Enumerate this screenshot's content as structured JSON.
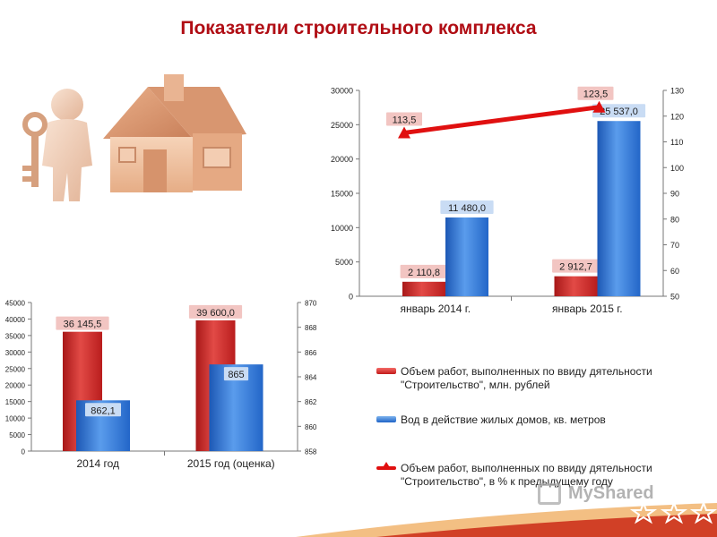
{
  "slide": {
    "title": "Показатели строительного комплекса"
  },
  "icons": {
    "illustration": "house-with-key-illustration",
    "footer": "star-icon"
  },
  "colors": {
    "title": "#b00d14",
    "bar_red": "#d42b2b",
    "bar_blue": "#2f78d6",
    "line_red": "#e01010"
  },
  "legend": {
    "items": [
      {
        "label": "Объем работ, выполненных по ввиду дятельности \"Строительство\", млн. рублей",
        "swatch": "red-bar"
      },
      {
        "label": "Вод в действие жилых домов, кв. метров",
        "swatch": "blue-bar"
      },
      {
        "label": "Объем работ, выполненных по ввиду дятельности \"Строительство\", в % к предыдущему году",
        "swatch": "red-line"
      }
    ]
  },
  "watermark": {
    "text": "MyShared"
  },
  "chart_data": [
    {
      "type": "bar",
      "categories": [
        "январь 2014 г.",
        "январь 2015 г."
      ],
      "series": [
        {
          "name": "Объем работ, выполненных по ввиду дятельности \"Строительство\", млн. рублей",
          "values": [
            2110.8,
            2912.7
          ],
          "labels": [
            "2 110,8",
            "2 912,7"
          ],
          "axis": "left",
          "color": "#d42b2b"
        },
        {
          "name": "Вод в действие жилых домов, кв. метров",
          "values": [
            11480.0,
            25537.0
          ],
          "labels": [
            "11 480,0",
            "25 537,0"
          ],
          "axis": "left",
          "color": "#2f78d6"
        },
        {
          "name": "Объем работ, выполненных по ввиду дятельности \"Строительство\", в % к предыдущему году",
          "type": "line",
          "values": [
            113.5,
            123.5
          ],
          "labels": [
            "113,5",
            "123,5"
          ],
          "axis": "right",
          "color": "#e01010"
        }
      ],
      "ylim": [
        0,
        30000
      ],
      "yticks": [
        "0",
        "5000",
        "10000",
        "15000",
        "20000",
        "25000",
        "30000"
      ],
      "y2lim": [
        50,
        130
      ],
      "y2ticks": [
        "50",
        "60",
        "70",
        "80",
        "90",
        "100",
        "110",
        "120",
        "130"
      ],
      "grid": false,
      "legend": "bottom"
    },
    {
      "type": "bar",
      "categories": [
        "2014 год",
        "2015 год (оценка)"
      ],
      "series": [
        {
          "values": [
            36145.5,
            39600.0
          ],
          "labels": [
            "36 145,5",
            "39 600,0"
          ],
          "axis": "left",
          "color": "#d42b2b"
        },
        {
          "values": [
            862.1,
            865
          ],
          "labels": [
            "862,1",
            "865"
          ],
          "axis": "right",
          "color": "#2f78d6"
        }
      ],
      "ylim": [
        0,
        45000
      ],
      "yticks": [
        "0",
        "5000",
        "10000",
        "15000",
        "20000",
        "25000",
        "30000",
        "35000",
        "40000",
        "45000"
      ],
      "y2lim": [
        858,
        870
      ],
      "y2ticks": [
        "858",
        "860",
        "862",
        "864",
        "866",
        "868",
        "870"
      ],
      "grid": false
    }
  ]
}
